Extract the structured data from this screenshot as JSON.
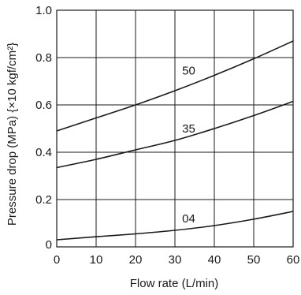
{
  "chart_data": {
    "type": "line",
    "xlabel": "Flow rate (L/min)",
    "ylabel": "Pressure drop (MPa) {×10 kgf/cm²}",
    "xlim": [
      0,
      60
    ],
    "ylim": [
      0,
      1.0
    ],
    "x_ticks": [
      "0",
      "10",
      "20",
      "30",
      "40",
      "50",
      "60"
    ],
    "y_ticks": [
      "0",
      "0.2",
      "0.4",
      "0.6",
      "0.8",
      "1.0"
    ],
    "grid": true,
    "series": [
      {
        "name": "50",
        "x": [
          0,
          10,
          20,
          30,
          40,
          50,
          60
        ],
        "y": [
          0.49,
          0.545,
          0.6,
          0.66,
          0.725,
          0.795,
          0.87
        ]
      },
      {
        "name": "35",
        "x": [
          0,
          10,
          20,
          30,
          40,
          50,
          60
        ],
        "y": [
          0.335,
          0.37,
          0.41,
          0.45,
          0.5,
          0.555,
          0.615
        ]
      },
      {
        "name": "04",
        "x": [
          0,
          10,
          20,
          30,
          40,
          50,
          60
        ],
        "y": [
          0.03,
          0.043,
          0.055,
          0.07,
          0.09,
          0.117,
          0.15
        ]
      }
    ],
    "annotations": [
      {
        "text": "50",
        "x": 33.5,
        "y": 0.745
      },
      {
        "text": "35",
        "x": 33.5,
        "y": 0.5
      },
      {
        "text": "04",
        "x": 33.5,
        "y": 0.12
      }
    ]
  }
}
